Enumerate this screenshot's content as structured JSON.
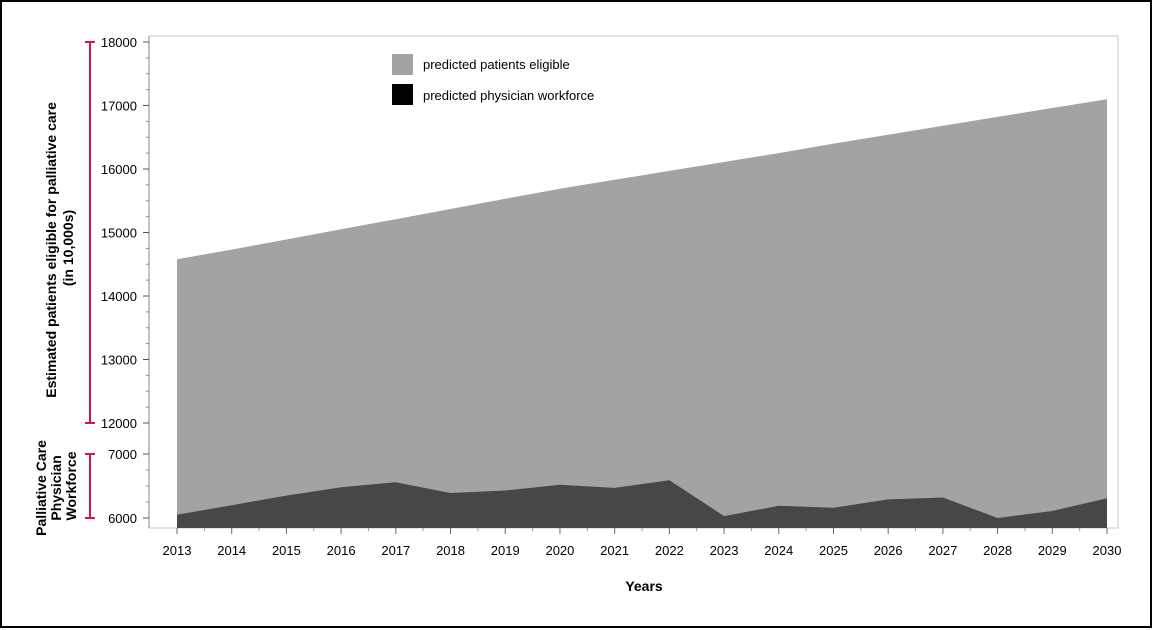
{
  "chart_data": {
    "type": "area",
    "xlabel": "Years",
    "ylabel": "Estimated patients eligible for palliative care (in 10,000s)",
    "ylabel_lower": "Palliative Care Physician Workforce",
    "x": [
      2013,
      2014,
      2015,
      2016,
      2017,
      2018,
      2019,
      2020,
      2021,
      2022,
      2023,
      2024,
      2025,
      2026,
      2027,
      2028,
      2029,
      2030
    ],
    "x_tick_labels": [
      "2013",
      "2014",
      "2015",
      "2016",
      "2017",
      "2018",
      "2019",
      "2020",
      "2021",
      "2022",
      "2023",
      "2024",
      "2025",
      "2026",
      "2027",
      "2028",
      "2029",
      "2030"
    ],
    "y_tick_labels": [
      "6000",
      "7000",
      "12000",
      "13000",
      "14000",
      "15000",
      "16000",
      "17000",
      "18000"
    ],
    "y_segments": [
      {
        "name": "lower",
        "range": [
          6000,
          7000
        ]
      },
      {
        "name": "upper",
        "range": [
          12000,
          18000
        ]
      }
    ],
    "series": [
      {
        "name": "predicted patients eligible",
        "color": "#a3a3a3",
        "values": [
          14580,
          14730,
          14890,
          15050,
          15210,
          15370,
          15530,
          15690,
          15830,
          15970,
          16110,
          16250,
          16400,
          16540,
          16680,
          16820,
          16960,
          17100
        ]
      },
      {
        "name": "predicted physician workforce",
        "color": "#474747",
        "values": [
          6050,
          6200,
          6350,
          6480,
          6560,
          6390,
          6430,
          6520,
          6470,
          6590,
          6030,
          6190,
          6160,
          6290,
          6320,
          6000,
          6110,
          6310
        ]
      }
    ],
    "legend": {
      "position": "top-center",
      "entries": [
        {
          "label": "predicted patients eligible",
          "swatch": "#a3a3a3"
        },
        {
          "label": "predicted physician workforce",
          "swatch": "#000000"
        }
      ]
    },
    "axis_bracket_color": "#d4145a",
    "grid": false
  }
}
